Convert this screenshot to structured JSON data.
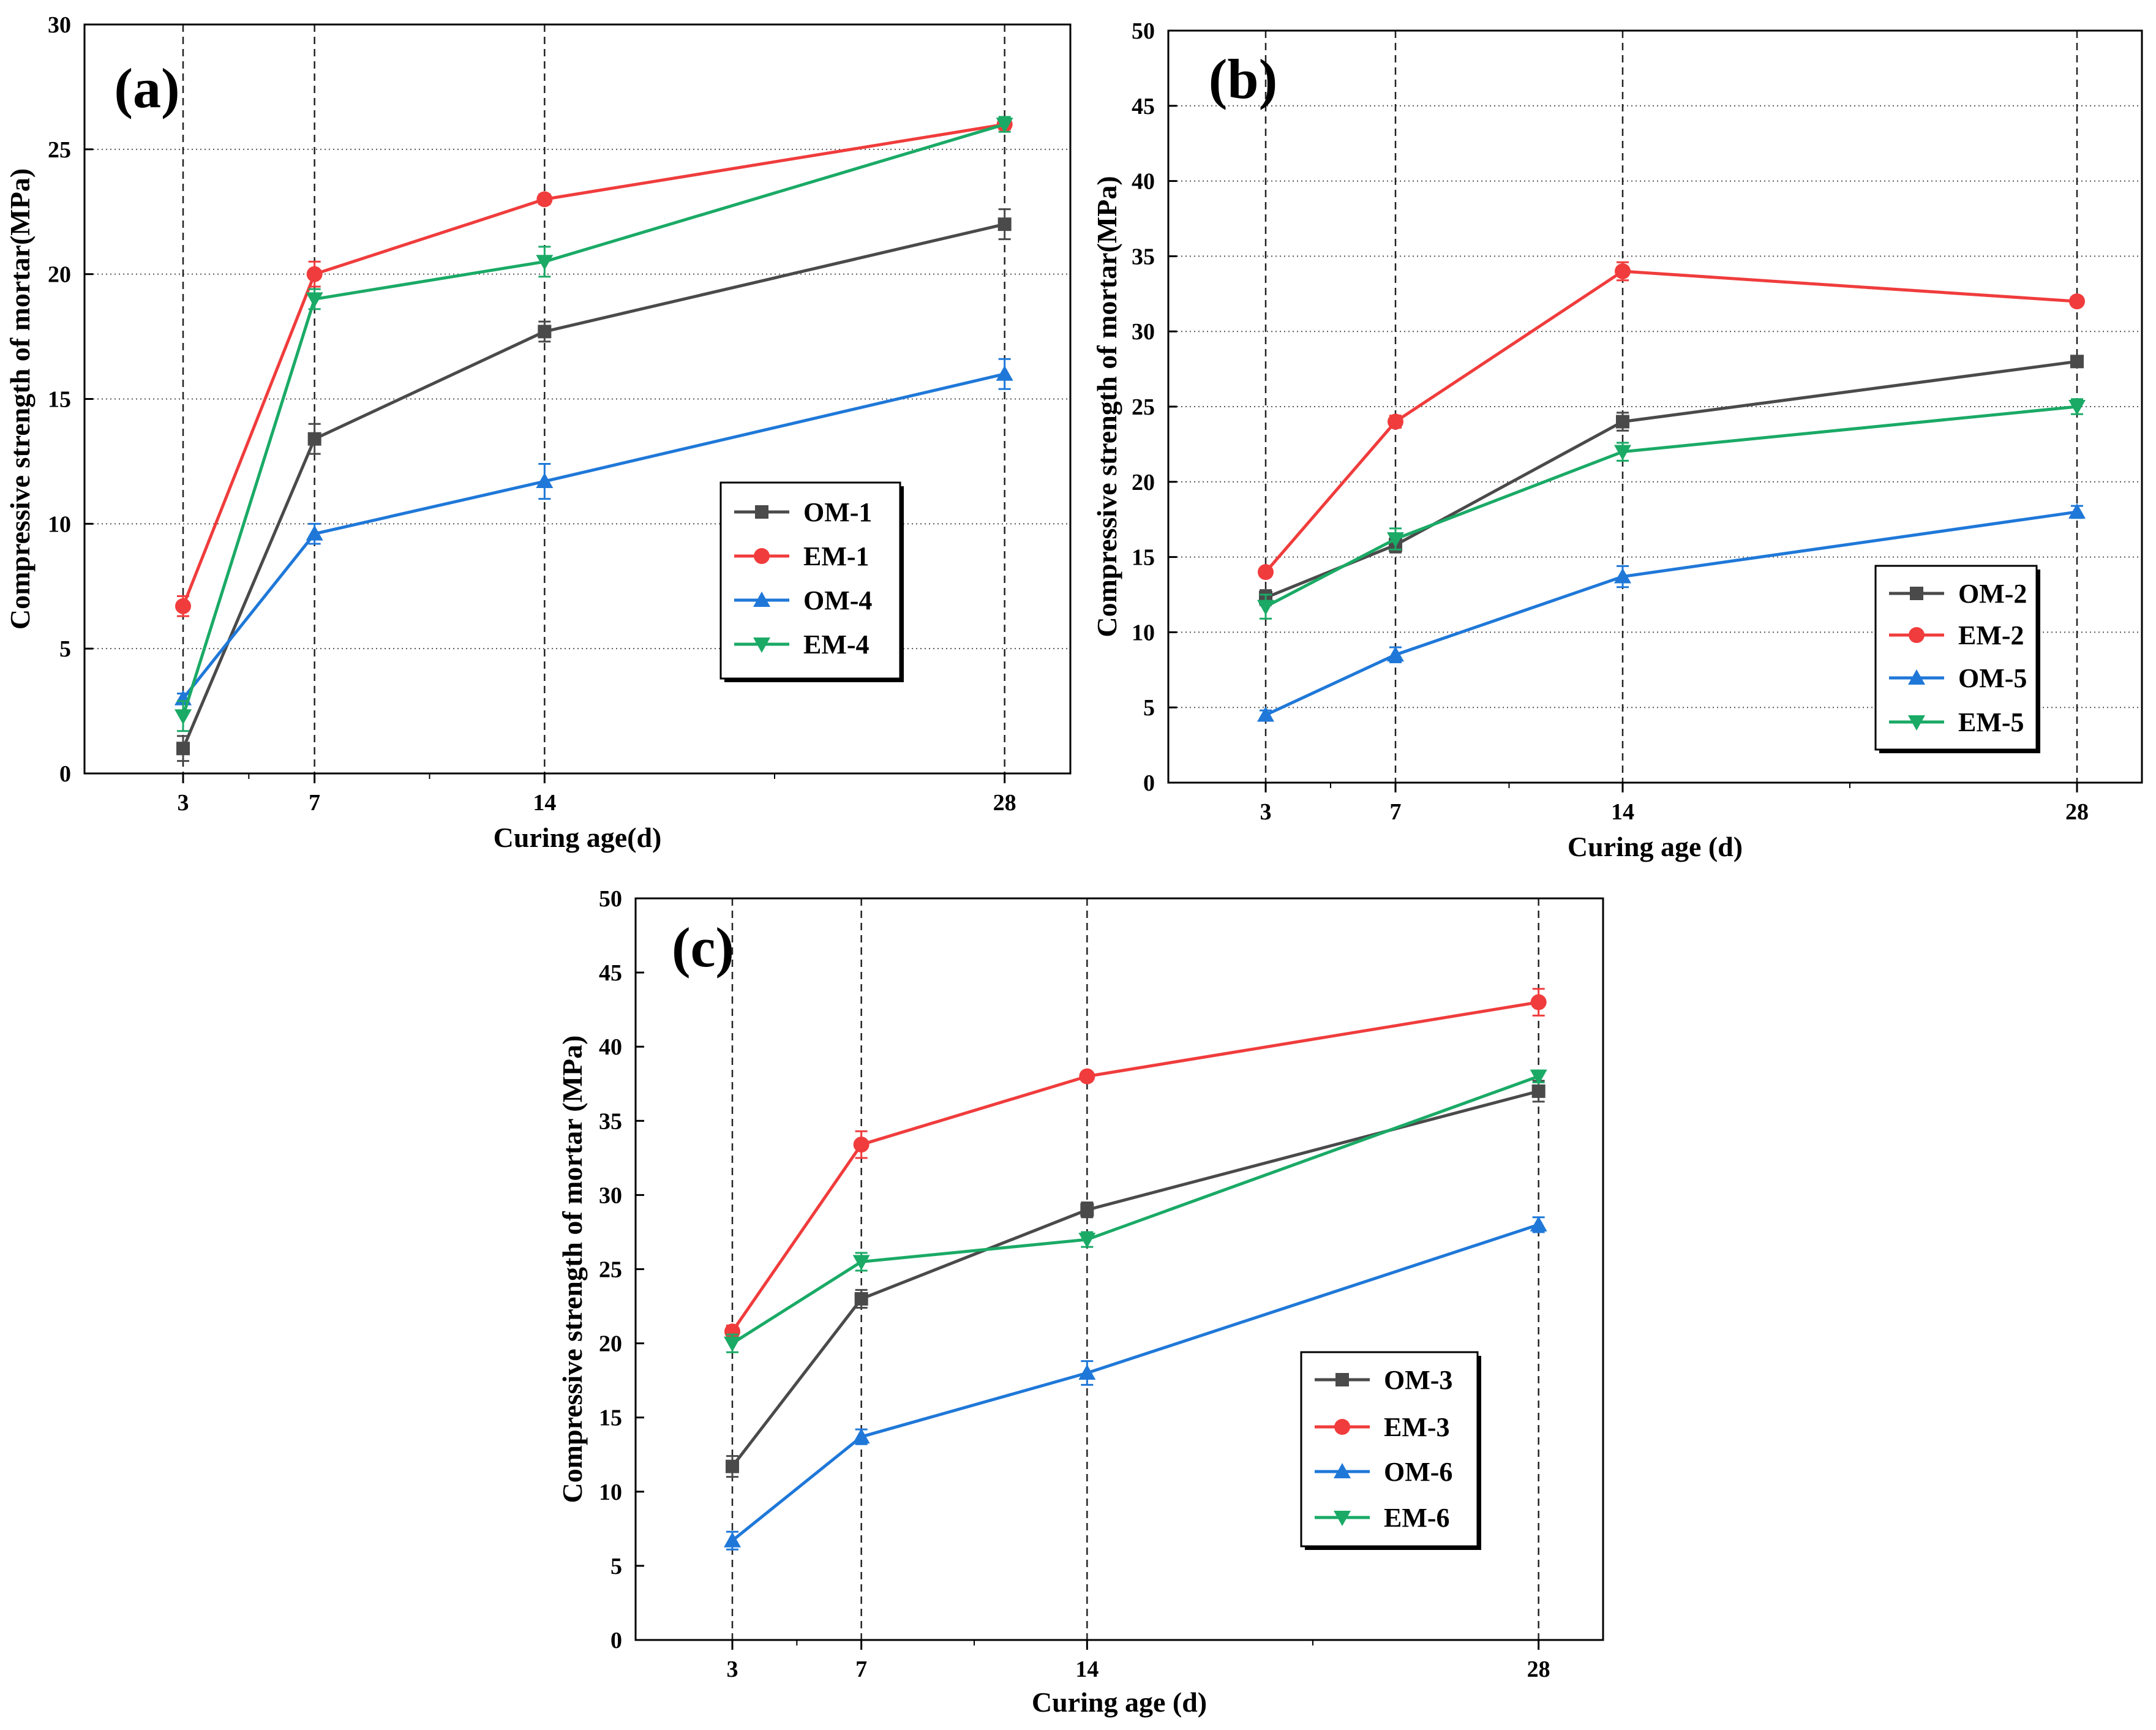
{
  "chart_data": [
    {
      "type": "line",
      "panel_label": "(a)",
      "xlabel": "Curing age(d)",
      "ylabel": "Compressive strength of mortar(MPa)",
      "x": [
        3,
        7,
        14,
        28
      ],
      "x_tick_labels": [
        "3",
        "7",
        "14",
        "28"
      ],
      "xlim": [
        0,
        30
      ],
      "ylim": [
        0,
        30
      ],
      "y_ticks": [
        0,
        5,
        10,
        15,
        20,
        25,
        30
      ],
      "grid": "dotted horizontal, dashed vertical at curing ages",
      "legend_position": "center-right",
      "series": [
        {
          "name": "OM-1",
          "color": "#4a4a4a",
          "marker": "square",
          "values": [
            1.0,
            13.4,
            17.7,
            22.0
          ],
          "errors": [
            0.5,
            0.6,
            0.4,
            0.6
          ]
        },
        {
          "name": "EM-1",
          "color": "#f03c3c",
          "marker": "circle",
          "values": [
            6.7,
            20.0,
            23.0,
            26.0
          ],
          "errors": [
            0.4,
            0.5,
            0.2,
            0.2
          ]
        },
        {
          "name": "OM-4",
          "color": "#1f78d8",
          "marker": "triangle-up",
          "values": [
            3.0,
            9.6,
            11.7,
            16.0
          ],
          "errors": [
            0.2,
            0.4,
            0.7,
            0.6
          ]
        },
        {
          "name": "EM-4",
          "color": "#1aaa66",
          "marker": "triangle-down",
          "values": [
            2.3,
            19.0,
            20.5,
            26.0
          ],
          "errors": [
            0.6,
            0.4,
            0.6,
            0.3
          ]
        }
      ]
    },
    {
      "type": "line",
      "panel_label": "(b)",
      "xlabel": "Curing age (d)",
      "ylabel": "Compressive strength of mortar(MPa)",
      "x": [
        3,
        7,
        14,
        28
      ],
      "x_tick_labels": [
        "3",
        "7",
        "14",
        "28"
      ],
      "xlim": [
        0,
        30
      ],
      "ylim": [
        0,
        50
      ],
      "y_ticks": [
        0,
        5,
        10,
        15,
        20,
        25,
        30,
        35,
        40,
        45,
        50
      ],
      "grid": "dotted horizontal, dashed vertical at curing ages",
      "legend_position": "bottom-right",
      "series": [
        {
          "name": "OM-2",
          "color": "#4a4a4a",
          "marker": "square",
          "values": [
            12.3,
            15.8,
            24.0,
            28.0
          ],
          "errors": [
            0.5,
            0.5,
            0.6,
            0.3
          ]
        },
        {
          "name": "EM-2",
          "color": "#f03c3c",
          "marker": "circle",
          "values": [
            14.0,
            24.0,
            34.0,
            32.0
          ],
          "errors": [
            0.3,
            0.4,
            0.6,
            0.3
          ]
        },
        {
          "name": "OM-5",
          "color": "#1f78d8",
          "marker": "triangle-up",
          "values": [
            4.5,
            8.5,
            13.7,
            18.0
          ],
          "errors": [
            0.3,
            0.5,
            0.7,
            0.4
          ]
        },
        {
          "name": "EM-5",
          "color": "#1aaa66",
          "marker": "triangle-down",
          "values": [
            11.7,
            16.2,
            22.0,
            25.0
          ],
          "errors": [
            0.8,
            0.7,
            0.6,
            0.5
          ]
        }
      ]
    },
    {
      "type": "line",
      "panel_label": "(c)",
      "xlabel": "Curing age (d)",
      "ylabel": "Compressive strength of mortar (MPa)",
      "x": [
        3,
        7,
        14,
        28
      ],
      "x_tick_labels": [
        "3",
        "7",
        "14",
        "28"
      ],
      "xlim": [
        0,
        30
      ],
      "ylim": [
        0,
        50
      ],
      "y_ticks": [
        0,
        5,
        10,
        15,
        20,
        25,
        30,
        35,
        40,
        45,
        50
      ],
      "grid": "dashed vertical at curing ages",
      "legend_position": "bottom-right",
      "series": [
        {
          "name": "OM-3",
          "color": "#4a4a4a",
          "marker": "square",
          "values": [
            11.7,
            23.0,
            29.0,
            37.0
          ],
          "errors": [
            0.7,
            0.6,
            0.5,
            0.7
          ]
        },
        {
          "name": "EM-3",
          "color": "#f03c3c",
          "marker": "circle",
          "values": [
            20.8,
            33.4,
            38.0,
            43.0
          ],
          "errors": [
            0.4,
            0.9,
            0.3,
            0.9
          ]
        },
        {
          "name": "OM-6",
          "color": "#1f78d8",
          "marker": "triangle-up",
          "values": [
            6.7,
            13.7,
            18.0,
            28.0
          ],
          "errors": [
            0.6,
            0.5,
            0.8,
            0.5
          ]
        },
        {
          "name": "EM-6",
          "color": "#1aaa66",
          "marker": "triangle-down",
          "values": [
            20.0,
            25.5,
            27.0,
            38.0
          ],
          "errors": [
            0.6,
            0.6,
            0.5,
            0.4
          ]
        }
      ]
    }
  ]
}
